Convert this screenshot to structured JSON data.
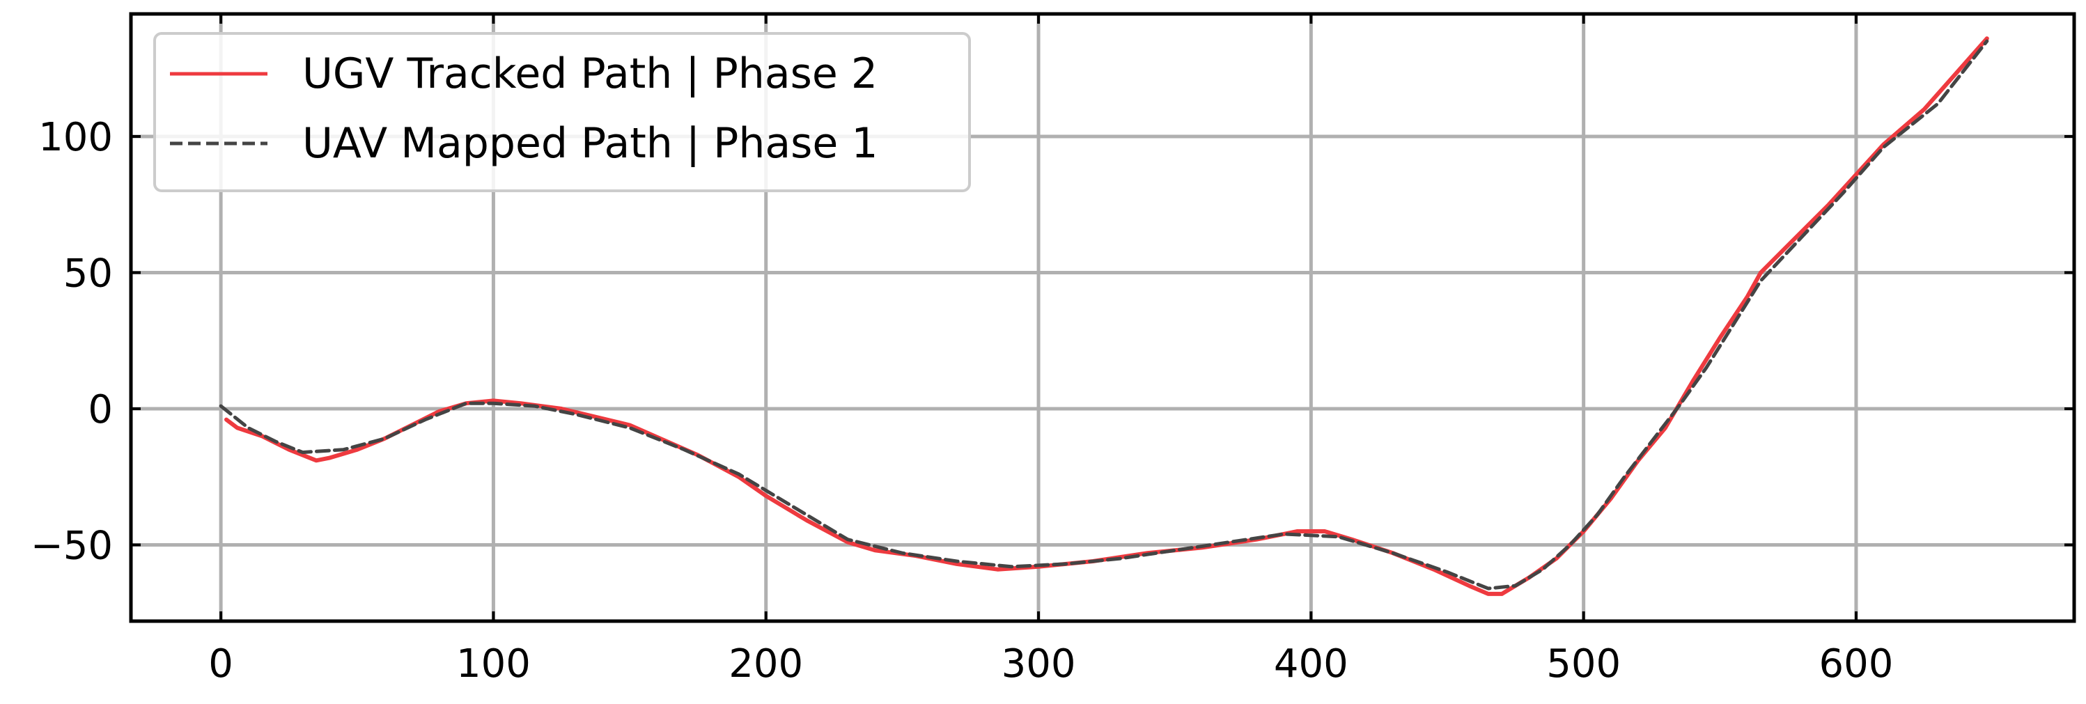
{
  "chart_data": {
    "type": "line",
    "title": "",
    "xlabel": "",
    "ylabel": "",
    "xlim": [
      -33,
      680
    ],
    "ylim": [
      -78,
      145
    ],
    "xticks": [
      0,
      100,
      200,
      300,
      400,
      500,
      600
    ],
    "yticks": [
      -50,
      0,
      50,
      100
    ],
    "xtick_labels": [
      "0",
      "100",
      "200",
      "300",
      "400",
      "500",
      "600"
    ],
    "ytick_labels": [
      "−50",
      "0",
      "50",
      "100"
    ],
    "grid": true,
    "legend_position": "top-left",
    "series": [
      {
        "name": "UGV Tracked Path | Phase 2",
        "color": "#ee3a3f",
        "style": "solid",
        "x": [
          2,
          6,
          15,
          25,
          35,
          40,
          50,
          60,
          70,
          80,
          90,
          100,
          110,
          125,
          150,
          175,
          190,
          200,
          215,
          230,
          240,
          255,
          270,
          285,
          300,
          320,
          340,
          360,
          380,
          395,
          405,
          415,
          430,
          445,
          458,
          465,
          470,
          480,
          490,
          500,
          510,
          520,
          530,
          540,
          550,
          560,
          565,
          575,
          590,
          600,
          610,
          625,
          648
        ],
        "y": [
          -4,
          -7,
          -10,
          -15,
          -19,
          -18,
          -15,
          -11,
          -6,
          -1,
          2,
          3,
          2,
          0,
          -6,
          -17,
          -25,
          -32,
          -41,
          -49,
          -52,
          -54,
          -57,
          -59,
          -58,
          -56,
          -53,
          -51,
          -48,
          -45,
          -45,
          -48,
          -53,
          -59,
          -65,
          -68,
          -68,
          -62,
          -55,
          -45,
          -33,
          -19,
          -7,
          10,
          26,
          41,
          50,
          60,
          75,
          86,
          97,
          110,
          136
        ]
      },
      {
        "name": "UAV Mapped Path | Phase 1",
        "color": "#444444",
        "style": "dashed",
        "x": [
          0,
          10,
          20,
          30,
          45,
          60,
          75,
          90,
          100,
          115,
          130,
          150,
          170,
          190,
          210,
          230,
          250,
          270,
          290,
          310,
          330,
          350,
          370,
          390,
          410,
          430,
          450,
          465,
          475,
          485,
          495,
          505,
          515,
          525,
          535,
          545,
          555,
          565,
          580,
          595,
          610,
          630,
          648
        ],
        "y": [
          1,
          -7,
          -12,
          -16,
          -15,
          -11,
          -4,
          2,
          2,
          1,
          -2,
          -7,
          -15,
          -24,
          -36,
          -48,
          -53,
          -56,
          -58,
          -57,
          -55,
          -52,
          -49,
          -46,
          -47,
          -53,
          -60,
          -66,
          -65,
          -59,
          -50,
          -39,
          -25,
          -12,
          1,
          15,
          31,
          47,
          63,
          79,
          96,
          112,
          135
        ]
      }
    ]
  }
}
